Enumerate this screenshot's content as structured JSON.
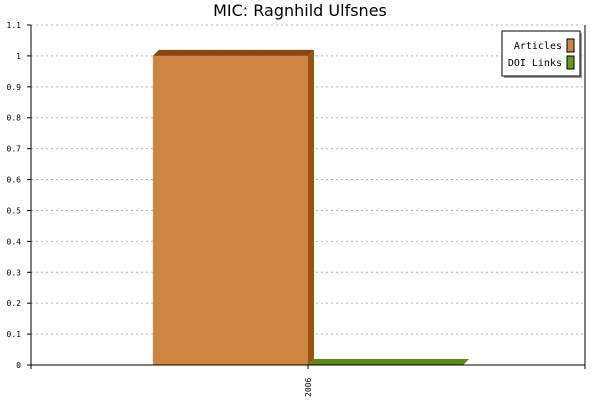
{
  "chart_data": {
    "type": "bar",
    "title": "MIC: Ragnhild Ulfsnes",
    "xlabel": "",
    "ylabel": "",
    "categories": [
      "2006"
    ],
    "series": [
      {
        "name": "Articles",
        "values": [
          1
        ],
        "color": "#cd853f",
        "side_color": "#9a5212",
        "top_color": "#8b4513"
      },
      {
        "name": "DOI Links",
        "values": [
          0
        ],
        "color": "#6a9a14",
        "side_color": "#4f7a0a",
        "top_color": "#5c8a0c"
      }
    ],
    "ylim": [
      0,
      1.1
    ],
    "yticks": [
      "0",
      "0.1",
      "0.2",
      "0.3",
      "0.4",
      "0.5",
      "0.6",
      "0.7",
      "0.8",
      "0.9",
      "1",
      "1.1"
    ],
    "grid": true,
    "legend_position": "top-right",
    "bar_style": "3d"
  }
}
